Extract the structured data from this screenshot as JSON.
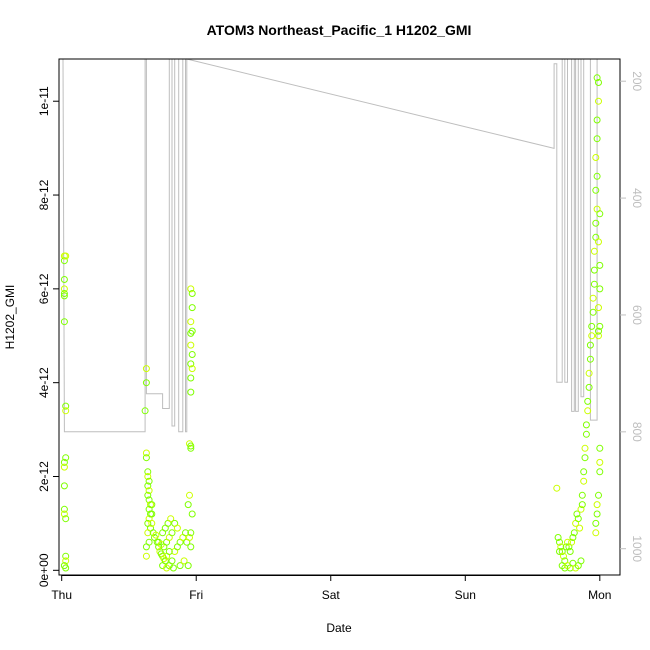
{
  "chart_data": {
    "type": "scatter",
    "title": "ATOM3 Northeast_Pacific_1 H1202_GMI",
    "xlabel": "Date",
    "ylabel": "H1202_GMI",
    "x_ticks": [
      "Thu",
      "Fri",
      "Sat",
      "Sun",
      "Mon"
    ],
    "y_ticks": [
      "0e+00",
      "2e-12",
      "4e-12",
      "6e-12",
      "8e-12",
      "1e-11"
    ],
    "y_tick_values": [
      0,
      2e-12,
      4e-12,
      6e-12,
      8e-12,
      1e-11
    ],
    "right_ticks": [
      "200",
      "400",
      "600",
      "800",
      "1000"
    ],
    "right_tick_values": [
      200,
      400,
      600,
      800,
      1000
    ],
    "x_unit": "days after Thu 00:00",
    "xlim": [
      -0.02,
      4.15
    ],
    "ylim": [
      -1e-13,
      1.09e-11
    ],
    "right_ylim": [
      1045,
      162
    ],
    "right_axis": "pressure (reversed)",
    "grid": false,
    "legend": "none",
    "colors": {
      "points": "#7fff00",
      "points_alt": "#ccff00",
      "pressure_line": "#bebebe"
    },
    "series": [
      {
        "kind": "points",
        "points": [
          [
            0.02,
            6.7e-12
          ],
          [
            0.02,
            6.6e-12
          ],
          [
            0.02,
            6.2e-12
          ],
          [
            0.02,
            6e-12
          ],
          [
            0.02,
            5.9e-12
          ],
          [
            0.02,
            5.85e-12
          ],
          [
            0.03,
            6.7e-12
          ],
          [
            0.02,
            5.3e-12
          ],
          [
            0.03,
            3.5e-12
          ],
          [
            0.03,
            3.4e-12
          ],
          [
            0.03,
            2.4e-12
          ],
          [
            0.02,
            2.3e-12
          ],
          [
            0.02,
            2.2e-12
          ],
          [
            0.02,
            1.8e-12
          ],
          [
            0.02,
            1.3e-12
          ],
          [
            0.02,
            1.2e-12
          ],
          [
            0.03,
            1.1e-12
          ],
          [
            0.03,
            3e-13
          ],
          [
            0.03,
            2e-13
          ],
          [
            0.02,
            1e-13
          ],
          [
            0.03,
            5e-14
          ],
          [
            0.63,
            4.3e-12
          ],
          [
            0.63,
            4e-12
          ],
          [
            0.62,
            3.4e-12
          ],
          [
            0.63,
            2.5e-12
          ],
          [
            0.63,
            2.4e-12
          ],
          [
            0.64,
            2.1e-12
          ],
          [
            0.64,
            2e-12
          ],
          [
            0.65,
            1.9e-12
          ],
          [
            0.64,
            1.8e-12
          ],
          [
            0.65,
            1.7e-12
          ],
          [
            0.64,
            1.6e-12
          ],
          [
            0.65,
            1.5e-12
          ],
          [
            0.66,
            1.4e-12
          ],
          [
            0.65,
            1.3e-12
          ],
          [
            0.66,
            1.2e-12
          ],
          [
            0.65,
            1.1e-12
          ],
          [
            0.64,
            1e-12
          ],
          [
            0.66,
            9e-13
          ],
          [
            0.64,
            8e-13
          ],
          [
            0.65,
            6e-13
          ],
          [
            0.63,
            5e-13
          ],
          [
            0.63,
            3e-13
          ],
          [
            0.67,
            1.4e-12
          ],
          [
            0.67,
            1.2e-12
          ],
          [
            0.67,
            1e-12
          ],
          [
            0.68,
            8e-13
          ],
          [
            0.69,
            7e-13
          ],
          [
            0.7,
            7.5e-13
          ],
          [
            0.71,
            6e-13
          ],
          [
            0.72,
            5e-13
          ],
          [
            0.73,
            4e-13
          ],
          [
            0.74,
            3.5e-13
          ],
          [
            0.75,
            3e-13
          ],
          [
            0.76,
            2.5e-13
          ],
          [
            0.77,
            2e-13
          ],
          [
            0.72,
            6e-13
          ],
          [
            0.74,
            5.5e-13
          ],
          [
            0.76,
            5e-13
          ],
          [
            0.78,
            6e-13
          ],
          [
            0.8,
            7e-13
          ],
          [
            0.82,
            8e-13
          ],
          [
            0.79,
            1e-12
          ],
          [
            0.81,
            1.1e-12
          ],
          [
            0.77,
            9e-13
          ],
          [
            0.75,
            8e-13
          ],
          [
            0.78,
            3e-13
          ],
          [
            0.8,
            1e-13
          ],
          [
            0.82,
            2e-13
          ],
          [
            0.84,
            4e-13
          ],
          [
            0.86,
            5e-13
          ],
          [
            0.88,
            6e-13
          ],
          [
            0.9,
            7e-13
          ],
          [
            0.92,
            8e-13
          ],
          [
            0.84,
            1e-12
          ],
          [
            0.86,
            9e-13
          ],
          [
            0.8,
            4e-13
          ],
          [
            0.75,
            1e-13
          ],
          [
            0.78,
            5e-14
          ],
          [
            0.83,
            5e-14
          ],
          [
            0.88,
            1e-13
          ],
          [
            0.91,
            2e-13
          ],
          [
            0.94,
            1e-13
          ],
          [
            0.93,
            6e-13
          ],
          [
            0.95,
            7e-13
          ],
          [
            0.96,
            8e-13
          ],
          [
            0.94,
            1.4e-12
          ],
          [
            0.95,
            1.6e-12
          ],
          [
            0.97,
            1.2e-12
          ],
          [
            0.96,
            5e-13
          ],
          [
            0.96,
            6e-12
          ],
          [
            0.97,
            5.9e-12
          ],
          [
            0.97,
            5.6e-12
          ],
          [
            0.96,
            5.3e-12
          ],
          [
            0.97,
            5.1e-12
          ],
          [
            0.96,
            5.05e-12
          ],
          [
            0.96,
            4.8e-12
          ],
          [
            0.97,
            4.6e-12
          ],
          [
            0.96,
            4.4e-12
          ],
          [
            0.97,
            4.3e-12
          ],
          [
            0.96,
            4.1e-12
          ],
          [
            0.96,
            3.8e-12
          ],
          [
            0.95,
            2.7e-12
          ],
          [
            0.96,
            2.65e-12
          ],
          [
            0.96,
            2.6e-12
          ],
          [
            3.68,
            1.75e-12
          ],
          [
            3.69,
            7e-13
          ],
          [
            3.7,
            6e-13
          ],
          [
            3.71,
            5e-13
          ],
          [
            3.72,
            4e-13
          ],
          [
            3.7,
            4e-13
          ],
          [
            3.73,
            3e-13
          ],
          [
            3.74,
            2e-13
          ],
          [
            3.75,
            5e-13
          ],
          [
            3.76,
            6e-13
          ],
          [
            3.77,
            5e-13
          ],
          [
            3.78,
            4e-13
          ],
          [
            3.79,
            6e-13
          ],
          [
            3.8,
            7e-13
          ],
          [
            3.81,
            8e-13
          ],
          [
            3.82,
            1e-12
          ],
          [
            3.83,
            1.2e-12
          ],
          [
            3.84,
            1.1e-12
          ],
          [
            3.85,
            9e-13
          ],
          [
            3.72,
            1e-13
          ],
          [
            3.74,
            5e-14
          ],
          [
            3.76,
            1e-13
          ],
          [
            3.78,
            5e-14
          ],
          [
            3.8,
            1.5e-13
          ],
          [
            3.82,
            5e-14
          ],
          [
            3.84,
            1e-13
          ],
          [
            3.86,
            2e-13
          ],
          [
            3.86,
            1.3e-12
          ],
          [
            3.87,
            1.4e-12
          ],
          [
            3.87,
            1.6e-12
          ],
          [
            3.88,
            1.9e-12
          ],
          [
            3.88,
            2.1e-12
          ],
          [
            3.89,
            2.4e-12
          ],
          [
            3.89,
            2.6e-12
          ],
          [
            3.9,
            2.9e-12
          ],
          [
            3.9,
            3.1e-12
          ],
          [
            3.91,
            3.4e-12
          ],
          [
            3.91,
            3.6e-12
          ],
          [
            3.92,
            3.9e-12
          ],
          [
            3.92,
            4.2e-12
          ],
          [
            3.93,
            4.5e-12
          ],
          [
            3.93,
            4.8e-12
          ],
          [
            3.94,
            5e-12
          ],
          [
            3.94,
            5.2e-12
          ],
          [
            3.95,
            5.5e-12
          ],
          [
            3.95,
            5.8e-12
          ],
          [
            3.96,
            6.1e-12
          ],
          [
            3.96,
            6.4e-12
          ],
          [
            3.96,
            6.8e-12
          ],
          [
            3.97,
            7.1e-12
          ],
          [
            3.97,
            7.4e-12
          ],
          [
            3.98,
            7.7e-12
          ],
          [
            3.97,
            8.1e-12
          ],
          [
            3.98,
            8.4e-12
          ],
          [
            3.97,
            8.8e-12
          ],
          [
            3.98,
            9.2e-12
          ],
          [
            3.98,
            9.6e-12
          ],
          [
            3.99,
            1e-11
          ],
          [
            3.99,
            1.04e-11
          ],
          [
            3.98,
            1.05e-11
          ],
          [
            3.99,
            5e-12
          ],
          [
            3.99,
            5.1e-12
          ],
          [
            4.0,
            5.2e-12
          ],
          [
            3.99,
            5.6e-12
          ],
          [
            4.0,
            6e-12
          ],
          [
            4.0,
            6.5e-12
          ],
          [
            3.99,
            7e-12
          ],
          [
            4.0,
            7.6e-12
          ],
          [
            4.0,
            2.6e-12
          ],
          [
            4.0,
            2.3e-12
          ],
          [
            4.0,
            2.1e-12
          ],
          [
            3.99,
            1.6e-12
          ],
          [
            3.98,
            1.4e-12
          ],
          [
            3.98,
            1.2e-12
          ],
          [
            3.97,
            1e-12
          ],
          [
            3.97,
            8e-13
          ]
        ]
      },
      {
        "kind": "line",
        "name": "",
        "points": [
          [
            0.0,
            160
          ],
          [
            0.01,
            160
          ],
          [
            0.02,
            800
          ],
          [
            0.62,
            800
          ],
          [
            0.62,
            160
          ],
          [
            0.63,
            160
          ],
          [
            0.63,
            735
          ],
          [
            0.75,
            735
          ],
          [
            0.75,
            760
          ],
          [
            0.8,
            760
          ],
          [
            0.8,
            160
          ],
          [
            0.82,
            160
          ],
          [
            0.82,
            790
          ],
          [
            0.84,
            790
          ],
          [
            0.84,
            160
          ],
          [
            0.87,
            160
          ],
          [
            0.87,
            800
          ],
          [
            0.9,
            800
          ],
          [
            0.9,
            160
          ],
          [
            0.92,
            160
          ],
          [
            0.92,
            800
          ],
          [
            0.93,
            800
          ],
          [
            0.93,
            160
          ],
          [
            3.66,
            315
          ],
          [
            3.66,
            170
          ],
          [
            3.68,
            170
          ],
          [
            3.68,
            715
          ],
          [
            3.72,
            715
          ],
          [
            3.72,
            160
          ],
          [
            3.74,
            160
          ],
          [
            3.74,
            715
          ],
          [
            3.76,
            715
          ],
          [
            3.76,
            160
          ],
          [
            3.79,
            160
          ],
          [
            3.79,
            765
          ],
          [
            3.81,
            765
          ],
          [
            3.81,
            160
          ],
          [
            3.82,
            160
          ],
          [
            3.82,
            765
          ],
          [
            3.84,
            765
          ],
          [
            3.84,
            160
          ],
          [
            3.86,
            160
          ],
          [
            3.86,
            740
          ],
          [
            3.88,
            740
          ],
          [
            3.88,
            160
          ],
          [
            3.93,
            160
          ],
          [
            3.93,
            780
          ],
          [
            3.98,
            780
          ],
          [
            3.98,
            160
          ]
        ]
      }
    ]
  }
}
